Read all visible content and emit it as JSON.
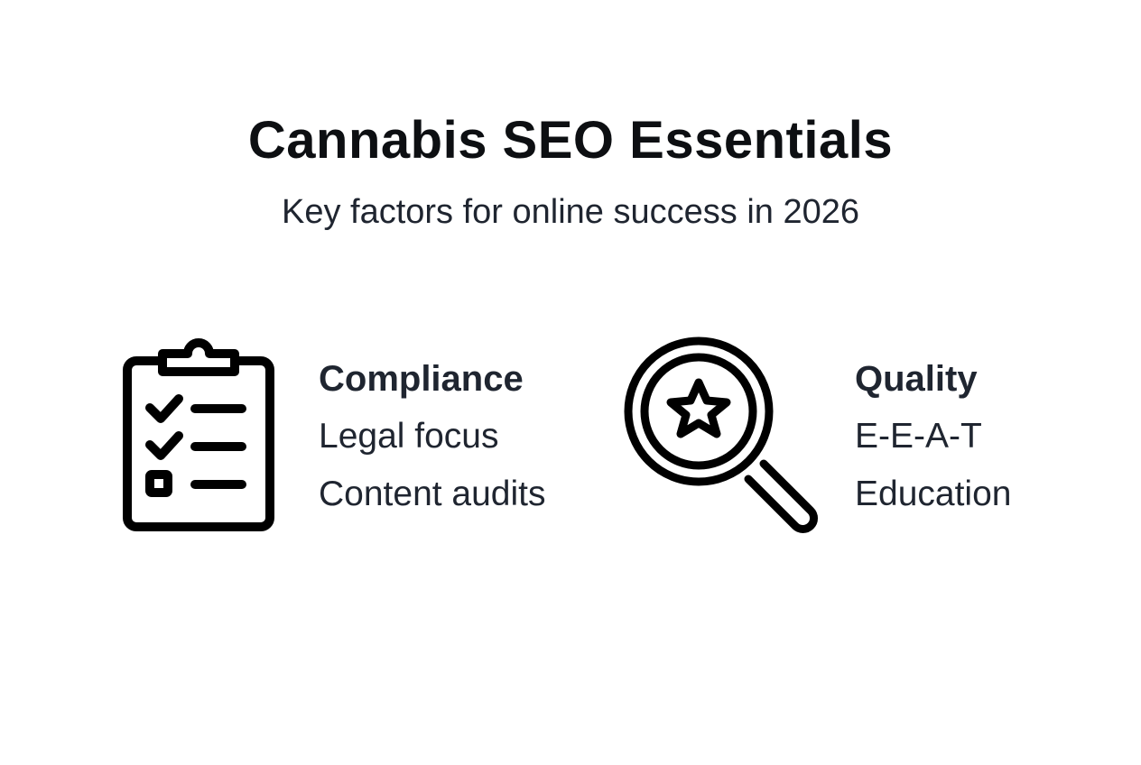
{
  "title": "Cannabis SEO Essentials",
  "subtitle": "Key factors for online success in 2026",
  "items": [
    {
      "icon": "clipboard-checklist-icon",
      "heading": "Compliance",
      "lines": [
        "Legal focus",
        "Content audits"
      ]
    },
    {
      "icon": "magnifier-star-icon",
      "heading": "Quality",
      "lines": [
        "E-E-A-T",
        "Education"
      ]
    }
  ]
}
